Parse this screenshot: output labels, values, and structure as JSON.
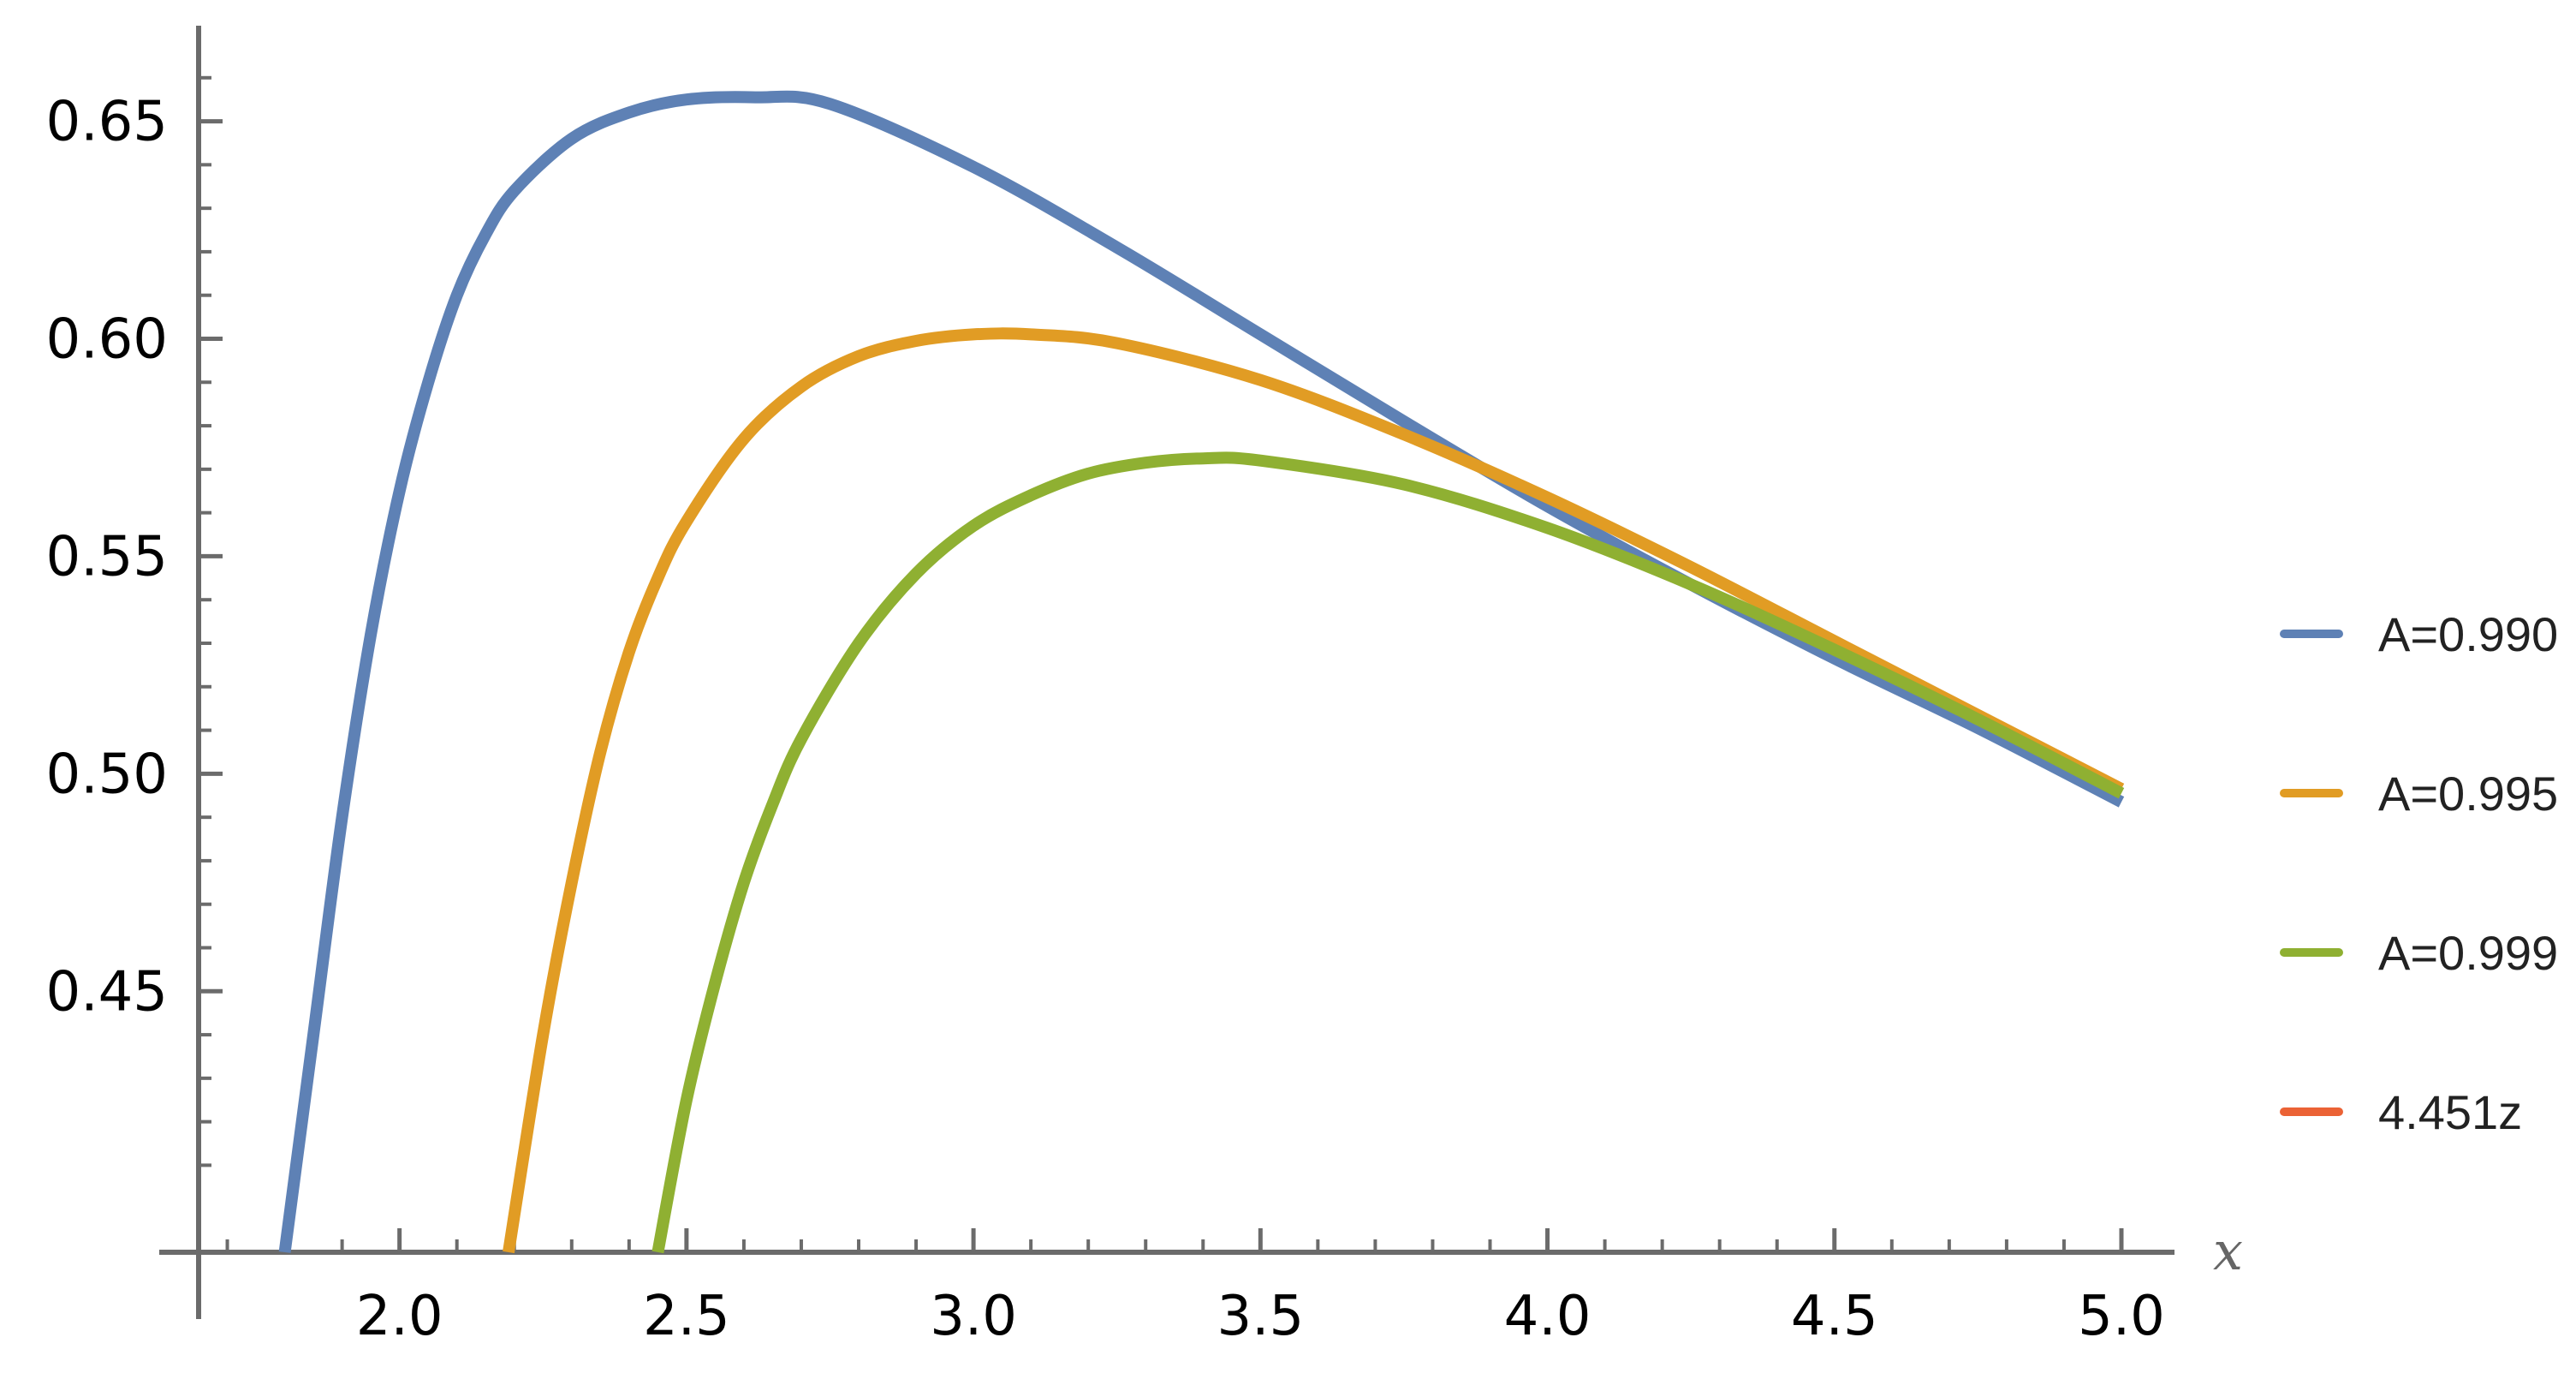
{
  "chart_data": {
    "type": "line",
    "title": "",
    "xlabel": "x",
    "ylabel": "",
    "xlim": [
      1.65,
      5.0
    ],
    "ylim": [
      0.39,
      0.67
    ],
    "axis_origin": {
      "x": 1.65,
      "y": 0.39
    },
    "grid": false,
    "legend_position": "right",
    "x_ticks": [
      {
        "value": 2.0,
        "label": "2.0"
      },
      {
        "value": 2.5,
        "label": "2.5"
      },
      {
        "value": 3.0,
        "label": "3.0"
      },
      {
        "value": 3.5,
        "label": "3.5"
      },
      {
        "value": 4.0,
        "label": "4.0"
      },
      {
        "value": 4.5,
        "label": "4.5"
      },
      {
        "value": 5.0,
        "label": "5.0"
      }
    ],
    "y_ticks": [
      {
        "value": 0.45,
        "label": "0.45"
      },
      {
        "value": 0.5,
        "label": "0.50"
      },
      {
        "value": 0.55,
        "label": "0.55"
      },
      {
        "value": 0.6,
        "label": "0.60"
      },
      {
        "value": 0.65,
        "label": "0.65"
      }
    ],
    "series": [
      {
        "name": "A=0.990",
        "color": "#5e81b5",
        "x": [
          1.8,
          1.85,
          1.9,
          1.95,
          2.0,
          2.05,
          2.1,
          2.15,
          2.2,
          2.3,
          2.4,
          2.5,
          2.62,
          2.75,
          3.0,
          3.25,
          3.5,
          3.75,
          4.0,
          4.25,
          4.5,
          4.75,
          5.0
        ],
        "y": [
          0.39,
          0.44,
          0.49,
          0.532,
          0.565,
          0.59,
          0.61,
          0.624,
          0.634,
          0.646,
          0.652,
          0.655,
          0.6555,
          0.654,
          0.6395,
          0.621,
          0.601,
          0.581,
          0.5615,
          0.5435,
          0.5265,
          0.5105,
          0.4935
        ]
      },
      {
        "name": "A=0.995",
        "color": "#e19c24",
        "x": [
          2.19,
          2.25,
          2.3,
          2.35,
          2.4,
          2.45,
          2.5,
          2.6,
          2.7,
          2.8,
          2.9,
          3.0,
          3.1,
          3.25,
          3.5,
          3.75,
          4.0,
          4.25,
          4.5,
          4.75,
          5.0
        ],
        "y": [
          0.39,
          0.44,
          0.475,
          0.505,
          0.528,
          0.545,
          0.558,
          0.577,
          0.589,
          0.596,
          0.5995,
          0.601,
          0.601,
          0.599,
          0.5905,
          0.578,
          0.5635,
          0.5475,
          0.5305,
          0.5135,
          0.4965
        ]
      },
      {
        "name": "A=0.999",
        "color": "#8fb032",
        "x": [
          2.45,
          2.5,
          2.55,
          2.6,
          2.65,
          2.7,
          2.8,
          2.9,
          3.0,
          3.1,
          3.2,
          3.3,
          3.4,
          3.5,
          3.75,
          4.0,
          4.25,
          4.5,
          4.75,
          5.0
        ],
        "y": [
          0.39,
          0.425,
          0.452,
          0.475,
          0.493,
          0.508,
          0.53,
          0.546,
          0.557,
          0.564,
          0.569,
          0.5715,
          0.5725,
          0.572,
          0.5665,
          0.5565,
          0.5435,
          0.5285,
          0.5125,
          0.4955
        ]
      },
      {
        "name": "4.451z",
        "color": "#eb6235",
        "legend_only": true,
        "x": [],
        "y": []
      }
    ]
  }
}
